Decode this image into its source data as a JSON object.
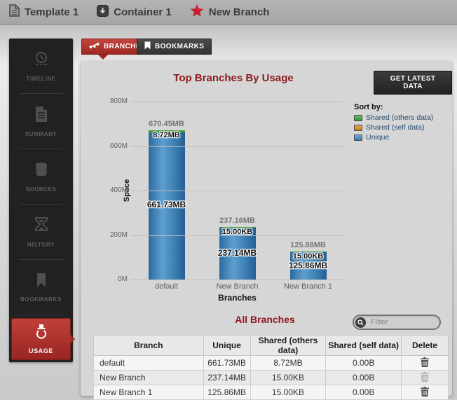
{
  "breadcrumb": {
    "items": [
      {
        "label": "Template 1",
        "icon": "document-icon"
      },
      {
        "label": "Container 1",
        "icon": "container-icon"
      },
      {
        "label": "New Branch",
        "icon": "star-icon"
      }
    ]
  },
  "sidebar": {
    "items": [
      {
        "label": "TIMELINE",
        "icon": "clock-icon"
      },
      {
        "label": "SUMMARY",
        "icon": "document-icon"
      },
      {
        "label": "SOURCES",
        "icon": "database-icon"
      },
      {
        "label": "HISTORY",
        "icon": "hourglass-icon"
      },
      {
        "label": "BOOKMARKS",
        "icon": "bookmark-icon"
      },
      {
        "label": "USAGE",
        "icon": "ink-bottle-icon",
        "active": true
      }
    ]
  },
  "tabs": [
    {
      "label": "BRANCHES",
      "icon": "branch-icon",
      "active": true
    },
    {
      "label": "BOOKMARKS",
      "icon": "bookmark-icon",
      "active": false
    }
  ],
  "toolbar": {
    "get_latest_label": "GET LATEST DATA"
  },
  "chart_data": {
    "type": "bar",
    "stacked": true,
    "title": "Top Branches By Usage",
    "xlabel": "Branches",
    "ylabel": "Space",
    "categories": [
      "default",
      "New Branch",
      "New Branch 1"
    ],
    "yticks": [
      "800M",
      "600M",
      "400M",
      "200M",
      "0M"
    ],
    "ylim_mb": [
      0,
      800
    ],
    "grid": true,
    "legend_position": "right",
    "series": [
      {
        "name": "Unique",
        "color": "#3f7fb5",
        "values_mb": [
          661.73,
          237.14,
          125.86
        ],
        "labels": [
          "661.73MB",
          "237.14MB",
          "125.86MB"
        ]
      },
      {
        "name": "Shared (others data)",
        "color": "#3f9c35",
        "values_mb": [
          8.72,
          0.015,
          0.015
        ],
        "labels": [
          "8.72MB",
          "15.00KB",
          "15.00KB"
        ]
      },
      {
        "name": "Shared (self data)",
        "color": "#e0962e",
        "values_mb": [
          0,
          0,
          0
        ],
        "labels": [
          "0.00B",
          "0.00B",
          "0.00B"
        ]
      }
    ],
    "totals": [
      "670.45MB",
      "237.16MB",
      "125.88MB"
    ]
  },
  "legend": {
    "title": "Sort by:",
    "items": [
      {
        "label": "Shared (others data)",
        "color": "#4ca64c",
        "gradient": [
          "#6cc06c",
          "#379237"
        ]
      },
      {
        "label": "Shared (self data)",
        "color": "#e0962e",
        "gradient": [
          "#f0a84e",
          "#cc7a1e"
        ]
      },
      {
        "label": "Unique",
        "color": "#4a8fc7",
        "gradient": [
          "#71a7d8",
          "#3a77ad"
        ]
      }
    ]
  },
  "all_branches": {
    "title": "All Branches",
    "filter_placeholder": "Filter",
    "table": {
      "headers": [
        "Branch",
        "Unique",
        "Shared (others data)",
        "Shared (self data)",
        "Delete"
      ],
      "rows": [
        {
          "branch": "default",
          "unique": "661.73MB",
          "shared_others": "8.72MB",
          "shared_self": "0.00B",
          "deletable": true
        },
        {
          "branch": "New Branch",
          "unique": "237.14MB",
          "shared_others": "15.00KB",
          "shared_self": "0.00B",
          "deletable": false
        },
        {
          "branch": "New Branch 1",
          "unique": "125.86MB",
          "shared_others": "15.00KB",
          "shared_self": "0.00B",
          "deletable": true
        }
      ]
    }
  },
  "colors": {
    "accent_red": "#b03230",
    "title_maroon": "#8c1a1f",
    "bar_blue": "#3f7fb5",
    "cap_green": "#3f9c35",
    "legend_text": "#26496d",
    "panel_gray": "#d6d6d6",
    "sidebar_black": "#212121"
  }
}
